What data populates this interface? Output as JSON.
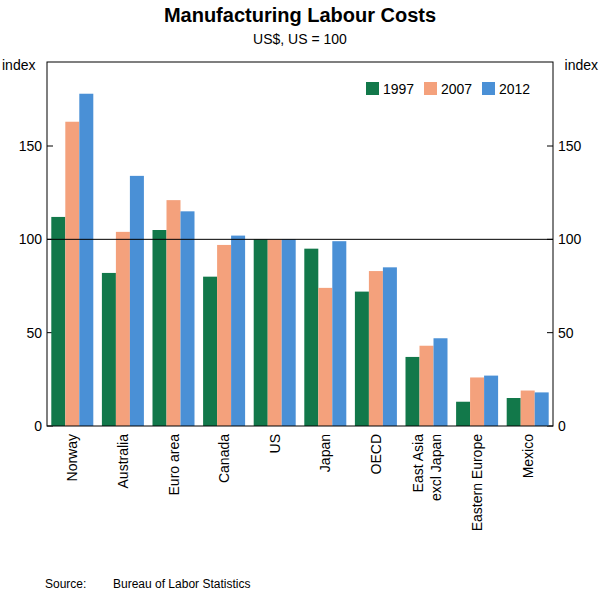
{
  "chart_data": {
    "type": "bar",
    "title": "Manufacturing Labour Costs",
    "subtitle": "US$, US = 100",
    "y_label": "index",
    "source_label": "Source:",
    "source": "Bureau of Labor Statistics",
    "categories": [
      "Norway",
      "Australia",
      "Euro area",
      "Canada",
      "US",
      "Japan",
      "OECD",
      "East Asia\nexcl Japan",
      "Eastern Europe",
      "Mexico"
    ],
    "series": [
      {
        "name": "1997",
        "color": "#12784a",
        "values": [
          112,
          82,
          105,
          80,
          100,
          95,
          72,
          37,
          13,
          15
        ]
      },
      {
        "name": "2007",
        "color": "#f4a17c",
        "values": [
          163,
          104,
          121,
          97,
          100,
          74,
          83,
          43,
          26,
          19
        ]
      },
      {
        "name": "2012",
        "color": "#4a90d6",
        "values": [
          178,
          134,
          115,
          102,
          100,
          99,
          85,
          47,
          27,
          18
        ]
      }
    ],
    "ylim": [
      0,
      195
    ],
    "yticks": [
      0,
      50,
      100,
      150
    ],
    "reference_line": 100,
    "grid": false,
    "legend": "top-right"
  }
}
